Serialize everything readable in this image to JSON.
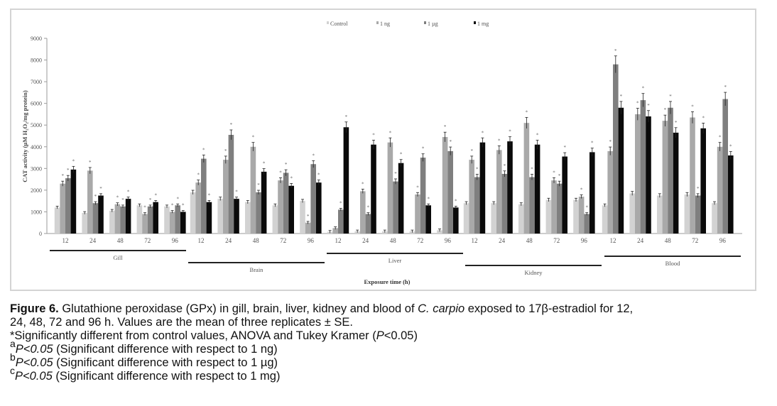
{
  "chart_data": {
    "type": "bar",
    "title": "",
    "ylabel": "CAT activity (µM H₂O₂/mg protein)",
    "xlabel": "Exposure time (h)",
    "ylim": [
      0,
      9000
    ],
    "yticks": [
      0,
      1000,
      2000,
      3000,
      4000,
      5000,
      6000,
      7000,
      8000,
      9000
    ],
    "legend_position": "top",
    "legend": [
      "Control",
      "1 ng",
      "1 µg",
      "1 mg"
    ],
    "series_colors": [
      "#d2d2d2",
      "#a9a9a9",
      "#7f7f7f",
      "#0a0a0a"
    ],
    "tissues": [
      {
        "name": "Gill",
        "times": [
          "12",
          "24",
          "48",
          "72",
          "96"
        ],
        "series": [
          {
            "name": "Control",
            "values": [
              1200,
              950,
              1050,
              1300,
              1250
            ]
          },
          {
            "name": "1 ng",
            "values": [
              2300,
              2900,
              1350,
              900,
              1000
            ]
          },
          {
            "name": "1 µg",
            "values": [
              2550,
              1400,
              1250,
              1250,
              1300
            ]
          },
          {
            "name": "1 mg",
            "values": [
              2950,
              1750,
              1600,
              1450,
              1000
            ]
          }
        ]
      },
      {
        "name": "Brain",
        "times": [
          "12",
          "24",
          "48",
          "72",
          "96"
        ],
        "series": [
          {
            "name": "Control",
            "values": [
              1900,
              1600,
              1450,
              1300,
              1500
            ]
          },
          {
            "name": "1 ng",
            "values": [
              2350,
              3400,
              4000,
              2450,
              500
            ]
          },
          {
            "name": "1 µg",
            "values": [
              3450,
              4550,
              1900,
              2800,
              3200
            ]
          },
          {
            "name": "1 mg",
            "values": [
              1450,
              1600,
              2850,
              2200,
              2350
            ]
          }
        ]
      },
      {
        "name": "Liver",
        "times": [
          "12",
          "24",
          "48",
          "72",
          "96"
        ],
        "series": [
          {
            "name": "Control",
            "values": [
              80,
              100,
              100,
              100,
              150
            ]
          },
          {
            "name": "1 ng",
            "values": [
              250,
              1950,
              4200,
              1800,
              4450
            ]
          },
          {
            "name": "1 µg",
            "values": [
              1100,
              900,
              2400,
              3500,
              3800
            ]
          },
          {
            "name": "1 mg",
            "values": [
              4900,
              4100,
              3250,
              1300,
              1200
            ]
          }
        ]
      },
      {
        "name": "Kidney",
        "times": [
          "12",
          "24",
          "48",
          "72",
          "96"
        ],
        "series": [
          {
            "name": "Control",
            "values": [
              1400,
              1400,
              1350,
              1550,
              1550
            ]
          },
          {
            "name": "1 ng",
            "values": [
              3400,
              3850,
              5100,
              2450,
              1700
            ]
          },
          {
            "name": "1 µg",
            "values": [
              2600,
              2750,
              2600,
              2300,
              900
            ]
          },
          {
            "name": "1 mg",
            "values": [
              4200,
              4250,
              4100,
              3550,
              3750
            ]
          }
        ]
      },
      {
        "name": "Blood",
        "times": [
          "12",
          "24",
          "48",
          "72",
          "96"
        ],
        "series": [
          {
            "name": "Control",
            "values": [
              1300,
              1850,
              1750,
              1800,
              1400
            ]
          },
          {
            "name": "1 ng",
            "values": [
              3800,
              5500,
              5200,
              5350,
              4000
            ]
          },
          {
            "name": "1 µg",
            "values": [
              7800,
              6150,
              5800,
              1750,
              6200
            ]
          },
          {
            "name": "1 mg",
            "values": [
              5800,
              5400,
              4650,
              4850,
              3600
            ]
          }
        ]
      }
    ]
  },
  "caption": {
    "figure_label": "Figure 6.",
    "line1": " Glutathione peroxidase (GPx) in gill, brain, liver, kidney and blood of ",
    "species": "C. carpio",
    "line1_end": " exposed to 17β-estradiol for 12,",
    "line2": "24, 48, 72 and 96 h. Values are the mean of three replicates ± SE.",
    "line3_start": "*Significantly different from control values, ANOVA and Tukey Kramer (",
    "line3_p": "P",
    "line3_end": "<0.05)",
    "footnotes": [
      {
        "mark": "a",
        "p": "P<0.05",
        "text": " (Significant difference with respect to 1 ng)"
      },
      {
        "mark": "b",
        "p": "P<0.05",
        "text": " (Significant difference with respect to 1 µg)"
      },
      {
        "mark": "c",
        "p": "P<0.05",
        "text": " (Significant difference with respect to 1 mg)"
      }
    ]
  }
}
